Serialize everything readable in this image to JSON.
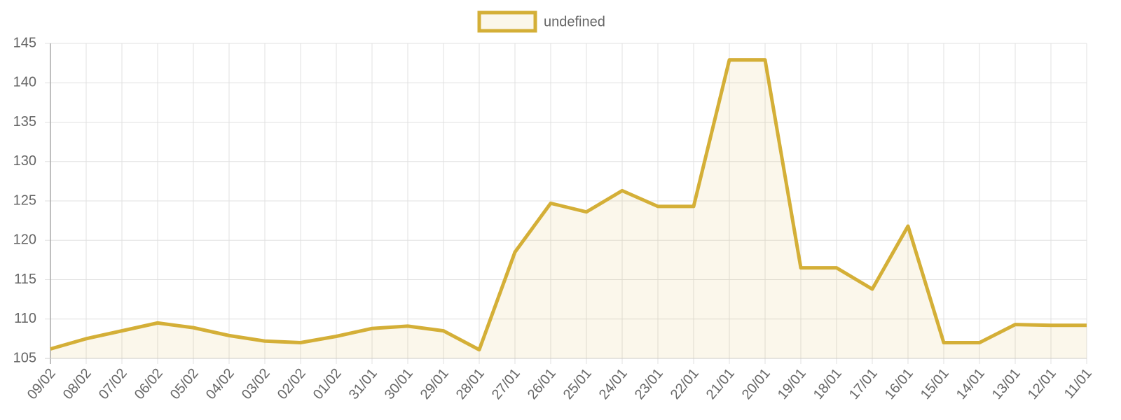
{
  "chart_data": {
    "type": "line",
    "categories": [
      "09/02",
      "08/02",
      "07/02",
      "06/02",
      "05/02",
      "04/02",
      "03/02",
      "02/02",
      "01/02",
      "31/01",
      "30/01",
      "29/01",
      "28/01",
      "27/01",
      "26/01",
      "25/01",
      "24/01",
      "23/01",
      "22/01",
      "21/01",
      "20/01",
      "19/01",
      "18/01",
      "17/01",
      "16/01",
      "15/01",
      "14/01",
      "13/01",
      "12/01",
      "11/01"
    ],
    "series": [
      {
        "name": "undefined",
        "color": "#d4af37",
        "fill": "rgba(212,175,55,0.1)",
        "values": [
          106.2,
          107.5,
          108.5,
          109.5,
          108.9,
          107.9,
          107.2,
          107.0,
          107.8,
          108.8,
          109.1,
          108.5,
          106.1,
          118.5,
          124.7,
          123.6,
          126.3,
          124.3,
          124.3,
          142.9,
          142.9,
          116.5,
          116.5,
          113.8,
          121.8,
          107.0,
          107.0,
          109.3,
          109.2,
          109.2
        ]
      }
    ],
    "ylim": [
      105,
      145
    ],
    "yticks": [
      105,
      110,
      115,
      120,
      125,
      130,
      135,
      140,
      145
    ],
    "grid": true,
    "legend": "top"
  }
}
